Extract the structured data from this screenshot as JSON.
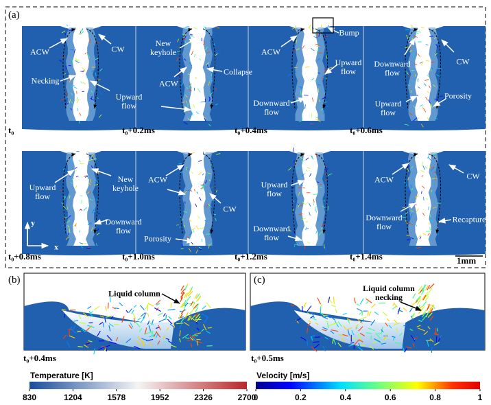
{
  "panel_a": {
    "label": "(a)",
    "frames": [
      {
        "time": "t₀",
        "annotations": [
          "ACW",
          "CW",
          "Necking",
          "Upward flow"
        ]
      },
      {
        "time": "t₀+0.2ms",
        "annotations": [
          "New keyhole",
          "Collapse",
          "ACW"
        ]
      },
      {
        "time": "t₀+0.4ms",
        "annotations": [
          "Bump",
          "ACW",
          "Upward flow",
          "Downward flow"
        ]
      },
      {
        "time": "t₀+0.6ms",
        "annotations": [
          "Downward flow",
          "CW",
          "Porosity",
          "Upward flow"
        ]
      },
      {
        "time": "t₀+0.8ms",
        "annotations": [
          "Upward flow",
          "New keyhole",
          "Downward flow"
        ]
      },
      {
        "time": "t₀+1.0ms",
        "annotations": [
          "ACW",
          "CW",
          "Porosity"
        ]
      },
      {
        "time": "t₀+1.2ms",
        "annotations": [
          "Upward flow",
          "Downward flow"
        ]
      },
      {
        "time": "t₀+1.4ms",
        "annotations": [
          "ACW",
          "CW",
          "Downward flow",
          "Recapture"
        ]
      }
    ],
    "axis_y": "y",
    "axis_x": "x",
    "scale": "1mm"
  },
  "panel_b": {
    "label": "(b)",
    "annotation": "Liquid column",
    "time": "t₀+0.4ms"
  },
  "panel_c": {
    "label": "(c)",
    "annotation": "Liquid column necking",
    "time": "t₀+0.5ms"
  },
  "colorbars": [
    {
      "title": "Temperature [K]",
      "ticks": [
        830,
        1204,
        1578,
        1952,
        2326,
        2700
      ]
    },
    {
      "title": "Velocity [m/s]",
      "ticks": [
        0,
        0.2,
        0.4,
        0.6,
        0.8,
        1
      ]
    }
  ]
}
